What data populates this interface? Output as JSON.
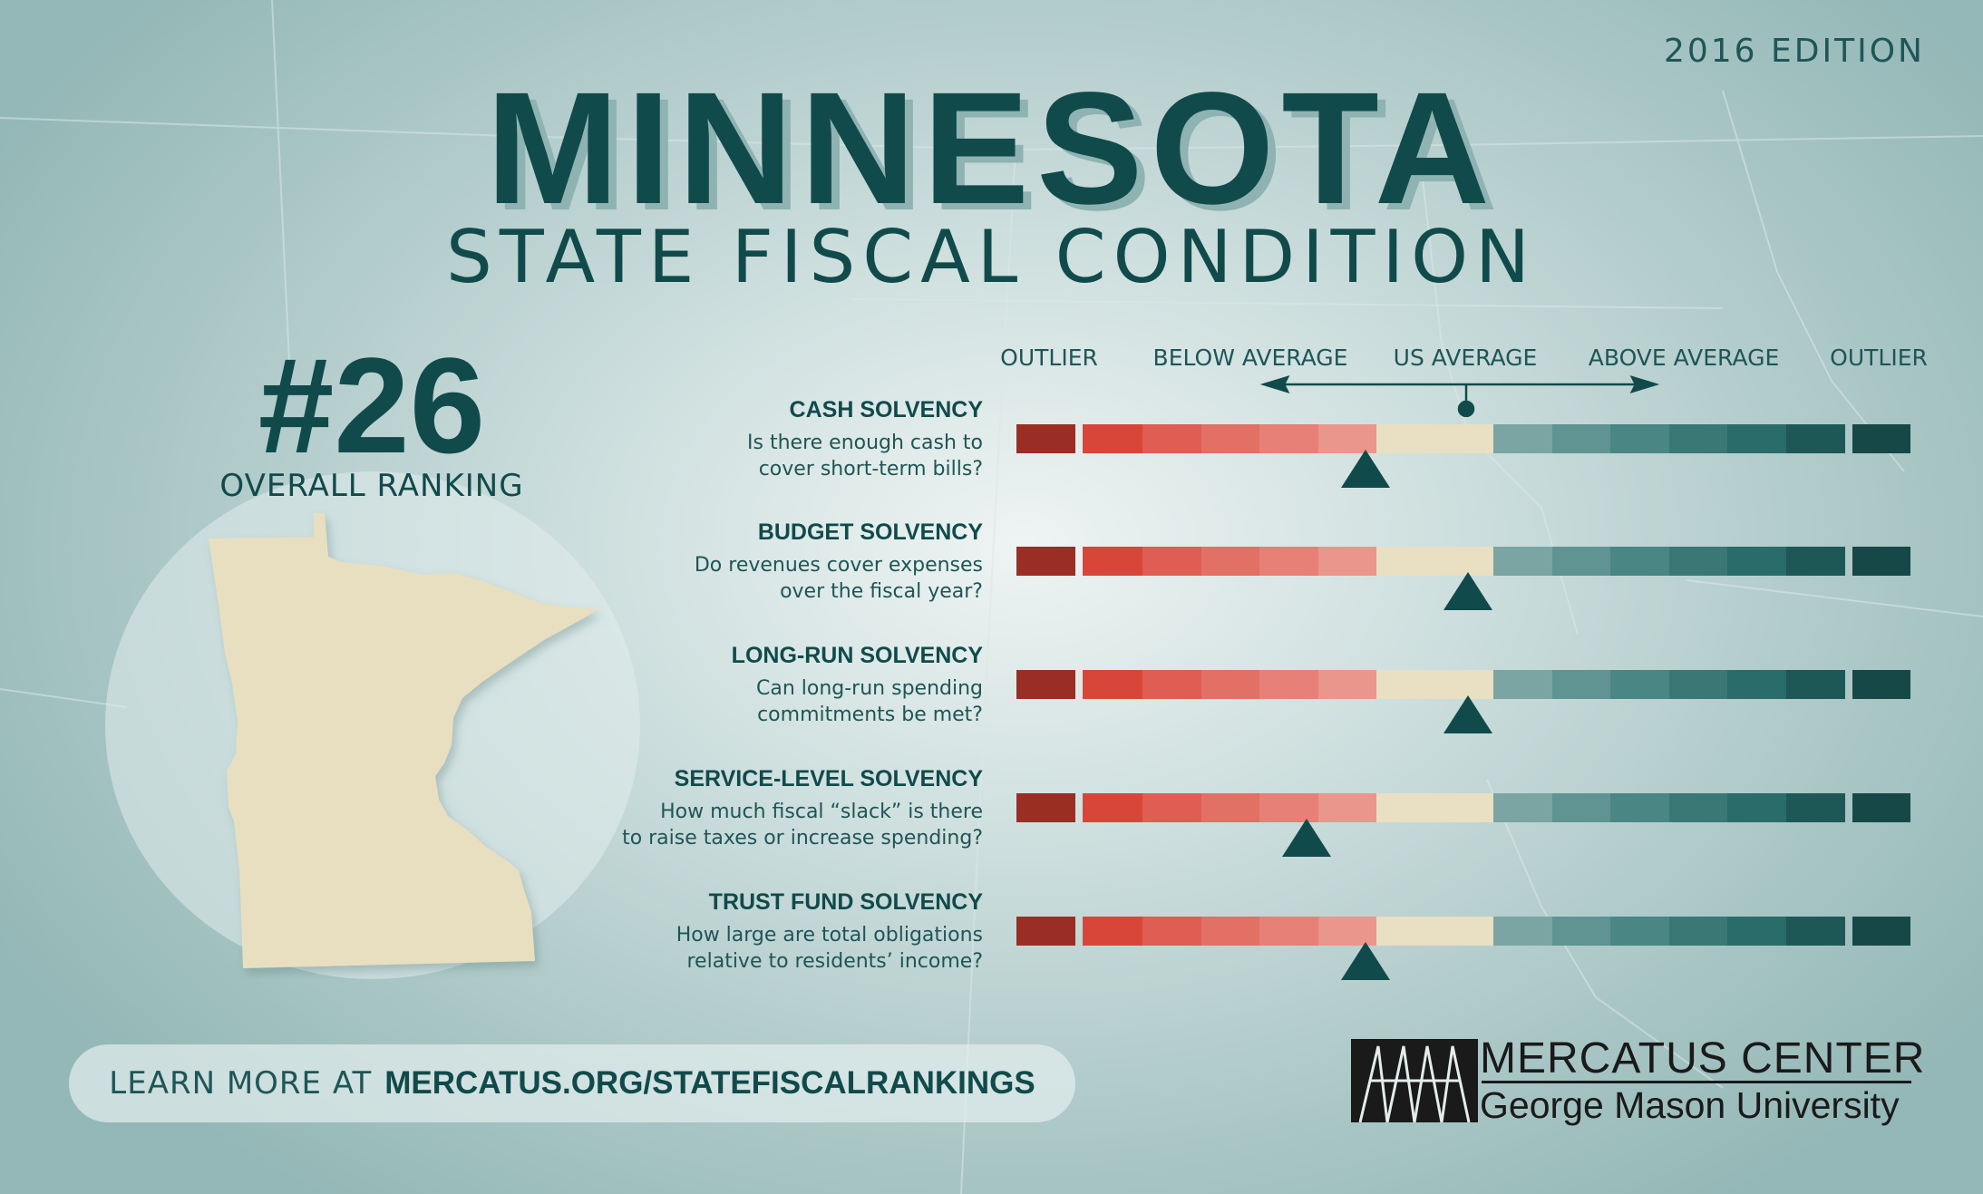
{
  "edition": "2016 EDITION",
  "title": "MINNESOTA",
  "subtitle": "STATE FISCAL CONDITION",
  "ranking": {
    "number": "#26",
    "label": "OVERALL RANKING"
  },
  "scale": {
    "labels": [
      "OUTLIER",
      "BELOW AVERAGE",
      "US AVERAGE",
      "ABOVE AVERAGE",
      "OUTLIER"
    ],
    "segment_colors": [
      "#9b2e24",
      "#d8463a",
      "#df5d52",
      "#e27065",
      "#e78076",
      "#eb968c",
      "#e9dfc2",
      "#e9dfc2",
      "#7aa5a3",
      "#5f9492",
      "#4a8683",
      "#397875",
      "#2a6c69",
      "#1d5857",
      "#164848"
    ]
  },
  "metrics": [
    {
      "title": "CASH SOLVENCY",
      "line1": "Is there enough cash to",
      "line2": "cover short-term bills?",
      "position": 0.39
    },
    {
      "title": "BUDGET SOLVENCY",
      "line1": "Do revenues cover expenses",
      "line2": "over the fiscal year?",
      "position": 0.505
    },
    {
      "title": "LONG-RUN SOLVENCY",
      "line1": "Can long-run spending",
      "line2": "commitments be met?",
      "position": 0.505
    },
    {
      "title": "SERVICE-LEVEL SOLVENCY",
      "line1": "How much fiscal “slack” is there",
      "line2": "to raise taxes or increase spending?",
      "position": 0.325
    },
    {
      "title": "TRUST FUND SOLVENCY",
      "line1": "How large are total obligations",
      "line2": "relative to residents’ income?",
      "position": 0.39
    }
  ],
  "footer": {
    "learn_prefix": "LEARN MORE AT",
    "learn_link": "MERCATUS.ORG/STATEFISCALRANKINGS"
  },
  "logo": {
    "line1": "MERCATUS CENTER",
    "line2": "George Mason University"
  },
  "colors": {
    "dark_teal": "#114a4b",
    "state_fill": "#e8dfc0"
  }
}
